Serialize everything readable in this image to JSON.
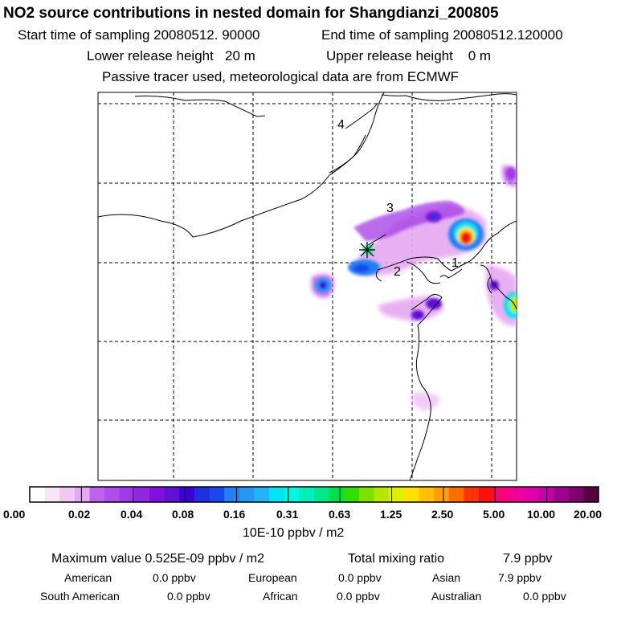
{
  "header": {
    "title": "NO2 source contributions in nested domain for Shangdianzi_200805",
    "start_label": "Start time of sampling 20080512. 90000",
    "end_label": "End time of sampling 20080512.120000",
    "lower_label": "Lower release height   20 m",
    "upper_label": "Upper release height    0 m",
    "tracer_note": "Passive tracer used, meteorological data are from ECMWF"
  },
  "map": {
    "region_labels": [
      "1",
      "2",
      "3",
      "4"
    ]
  },
  "colorbar": {
    "tick_labels": [
      "0.00",
      "0.02",
      "0.04",
      "0.08",
      "0.16",
      "0.31",
      "0.63",
      "1.25",
      "2.50",
      "5.00",
      "10.00",
      "20.00"
    ],
    "colors": [
      "#ffffff",
      "#f8e6f8",
      "#efc8f4",
      "#e4a8f0",
      "#c060ec",
      "#b04cea",
      "#a238e6",
      "#9028e2",
      "#8010dc",
      "#6010d8",
      "#3c00d8",
      "#2030e0",
      "#1848f0",
      "#2080f4",
      "#2498f4",
      "#20b4f4",
      "#00e4f4",
      "#00f8e0",
      "#00f0b8",
      "#00e888",
      "#00e048",
      "#30e000",
      "#80e000",
      "#b4e800",
      "#e0f000",
      "#ffe000",
      "#ffc000",
      "#ffa000",
      "#ff6c00",
      "#ff3400",
      "#ff1010",
      "#ff0078",
      "#f00098",
      "#e000a8",
      "#c800a8",
      "#a00090",
      "#800070",
      "#580040"
    ],
    "unit_label": "10E-10 ppbv / m2"
  },
  "summary": {
    "max_value": "Maximum value  0.525E-09 ppbv / m2",
    "total_label": "Total mixing ratio",
    "total_value": "7.9 ppbv",
    "regions": [
      {
        "name": "American",
        "value": "0.0 ppbv"
      },
      {
        "name": "European",
        "value": "0.0 ppbv"
      },
      {
        "name": "Asian",
        "value": "7.9 ppbv"
      },
      {
        "name": "South American",
        "value": "0.0 ppbv"
      },
      {
        "name": "African",
        "value": "0.0 ppbv"
      },
      {
        "name": "Australian",
        "value": "0.0 ppbv"
      }
    ]
  }
}
